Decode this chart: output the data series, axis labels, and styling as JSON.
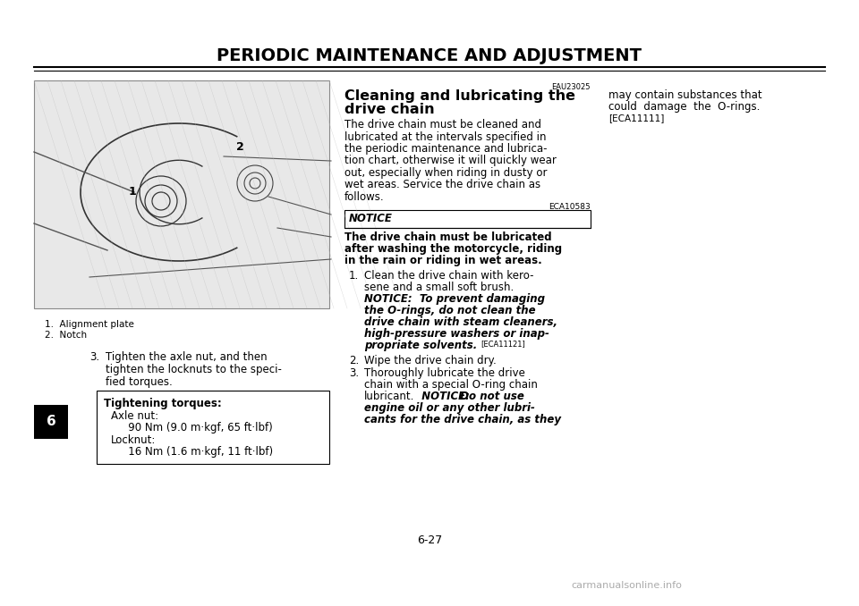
{
  "bg_color": "#ffffff",
  "title": "PERIODIC MAINTENANCE AND ADJUSTMENT",
  "page_number": "6-27",
  "tab_label": "6",
  "caption1": "1.  Alignment plate",
  "caption2": "2.  Notch",
  "step3_text_line1": "Tighten the axle nut, and then",
  "step3_text_line2": "tighten the locknuts to the speci-",
  "step3_text_line3": "fied torques.",
  "torque_title": "Tightening torques:",
  "torque_line1": "Axle nut:",
  "torque_line2": "   90 Nm (9.0 m·kgf, 65 ft·lbf)",
  "torque_line3": "Locknut:",
  "torque_line4": "   16 Nm (1.6 m·kgf, 11 ft·lbf)",
  "eau_label": "EAU23025",
  "section_title1": "Cleaning and lubricating the",
  "section_title2": "drive chain",
  "body1": "The drive chain must be cleaned and",
  "body2": "lubricated at the intervals specified in",
  "body3": "the periodic maintenance and lubrica-",
  "body4": "tion chart, otherwise it will quickly wear",
  "body5": "out, especially when riding in dusty or",
  "body6": "wet areas. Service the drive chain as",
  "body7": "follows.",
  "eca_label": "ECA10583",
  "notice_word": "NOTICE",
  "notice_bold1": "The drive chain must be lubricated",
  "notice_bold2": "after washing the motorcycle, riding",
  "notice_bold3": "in the rain or riding in wet areas.",
  "s1_normal1": "Clean the drive chain with kero-",
  "s1_normal2": "sene and a small soft brush.",
  "s1_bold1": "NOTICE:  To prevent damaging",
  "s1_bold2": "the O-rings, do not clean the",
  "s1_bold3": "drive chain with steam cleaners,",
  "s1_bold4": "high-pressure washers or inap-",
  "s1_bold5": "propriate solvents.",
  "s1_small": "[ECA11121]",
  "s2_text": "Wipe the drive chain dry.",
  "s3_normal1": "Thoroughly lubricate the drive",
  "s3_normal2": "chain with a special O-ring chain",
  "s3_normal3": "lubricant.",
  "s3_bold1": "  NOTICE:",
  "s3_bold_normal1": "  Do not use",
  "s3_bold2": "engine oil or any other lubri-",
  "s3_bold3": "cants for the drive chain, as they",
  "col3_line1": "may contain substances that",
  "col3_line2": "could  damage  the  O-rings.",
  "col3_small": "[ECA11111]",
  "watermark": "carmanualsonline.info"
}
